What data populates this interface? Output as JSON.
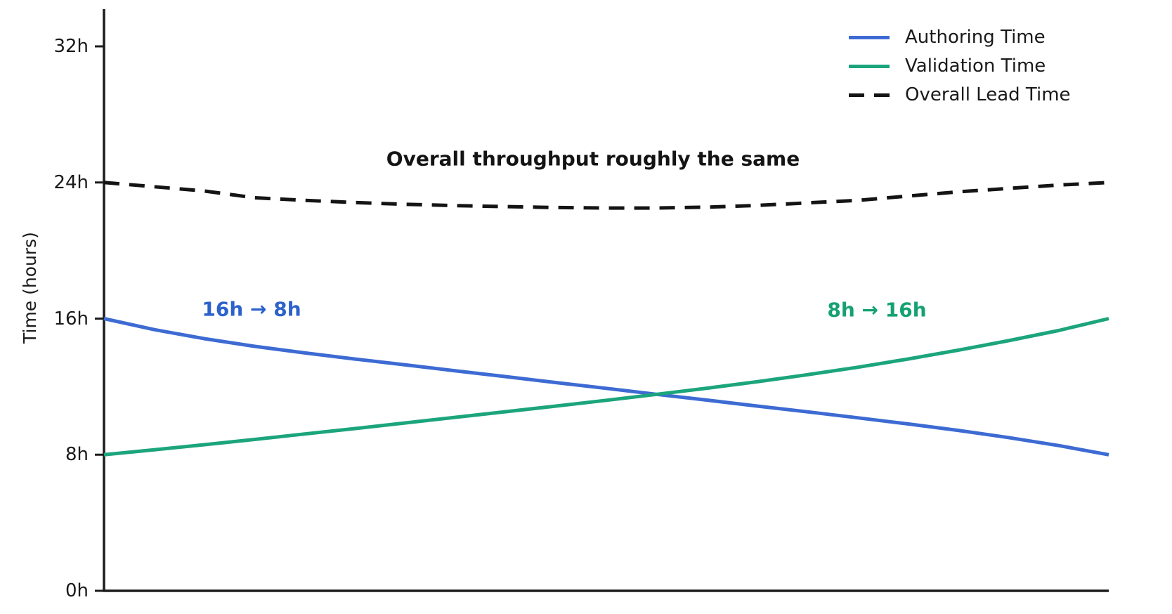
{
  "chart_data": {
    "type": "line",
    "title": "",
    "xlabel": "",
    "ylabel": "Time (hours)",
    "ylim": [
      0,
      32
    ],
    "x_range": [
      0,
      1
    ],
    "grid": false,
    "legend_position": "upper right",
    "yticks": [
      {
        "value": 0,
        "label": "0h"
      },
      {
        "value": 8,
        "label": "8h"
      },
      {
        "value": 16,
        "label": "16h"
      },
      {
        "value": 24,
        "label": "24h"
      },
      {
        "value": 32,
        "label": "32h"
      }
    ],
    "x": [
      0,
      0.05,
      0.1,
      0.15,
      0.2,
      0.25,
      0.3,
      0.35,
      0.4,
      0.45,
      0.5,
      0.55,
      0.6,
      0.65,
      0.7,
      0.75,
      0.8,
      0.85,
      0.9,
      0.95,
      1
    ],
    "series": [
      {
        "id": "authoring-time",
        "name": "Authoring Time",
        "color": "#3d6bd3",
        "dash": null,
        "start_value": 16,
        "end_value": 8,
        "values": [
          16,
          15.35,
          14.82,
          14.37,
          13.98,
          13.62,
          13.28,
          12.93,
          12.59,
          12.24,
          11.9,
          11.55,
          11.21,
          10.86,
          10.52,
          10.17,
          9.81,
          9.43,
          9.01,
          8.54,
          8
        ]
      },
      {
        "id": "validation-time",
        "name": "Validation Time",
        "color": "#1ca57c",
        "dash": null,
        "start_value": 8,
        "end_value": 16,
        "values": [
          8,
          8.29,
          8.59,
          8.9,
          9.22,
          9.54,
          9.87,
          10.2,
          10.53,
          10.86,
          11.2,
          11.55,
          11.91,
          12.29,
          12.7,
          13.14,
          13.62,
          14.14,
          14.7,
          15.3,
          16
        ]
      },
      {
        "id": "overall-lead-time",
        "name": "Overall Lead Time",
        "color": "#141414",
        "dash": [
          22,
          14
        ],
        "start_value": 24,
        "end_value": 24,
        "values": [
          24,
          23.75,
          23.5,
          23.1,
          22.95,
          22.82,
          22.72,
          22.64,
          22.58,
          22.53,
          22.5,
          22.5,
          22.55,
          22.65,
          22.8,
          22.95,
          23.2,
          23.45,
          23.65,
          23.85,
          24
        ]
      }
    ],
    "annotations": [
      {
        "id": "overall-throughput",
        "text": "Overall throughput roughly the same",
        "color": "#141414",
        "x": 0.487,
        "y": 25.4
      },
      {
        "id": "authoring-change",
        "text": "16h → 8h",
        "color": "#2d62cc",
        "x": 0.147,
        "y": 16.55
      },
      {
        "id": "validation-change",
        "text": "8h → 16h",
        "color": "#16a173",
        "x": 0.769,
        "y": 16.5
      }
    ],
    "axis_color": "#1c1c1c"
  }
}
